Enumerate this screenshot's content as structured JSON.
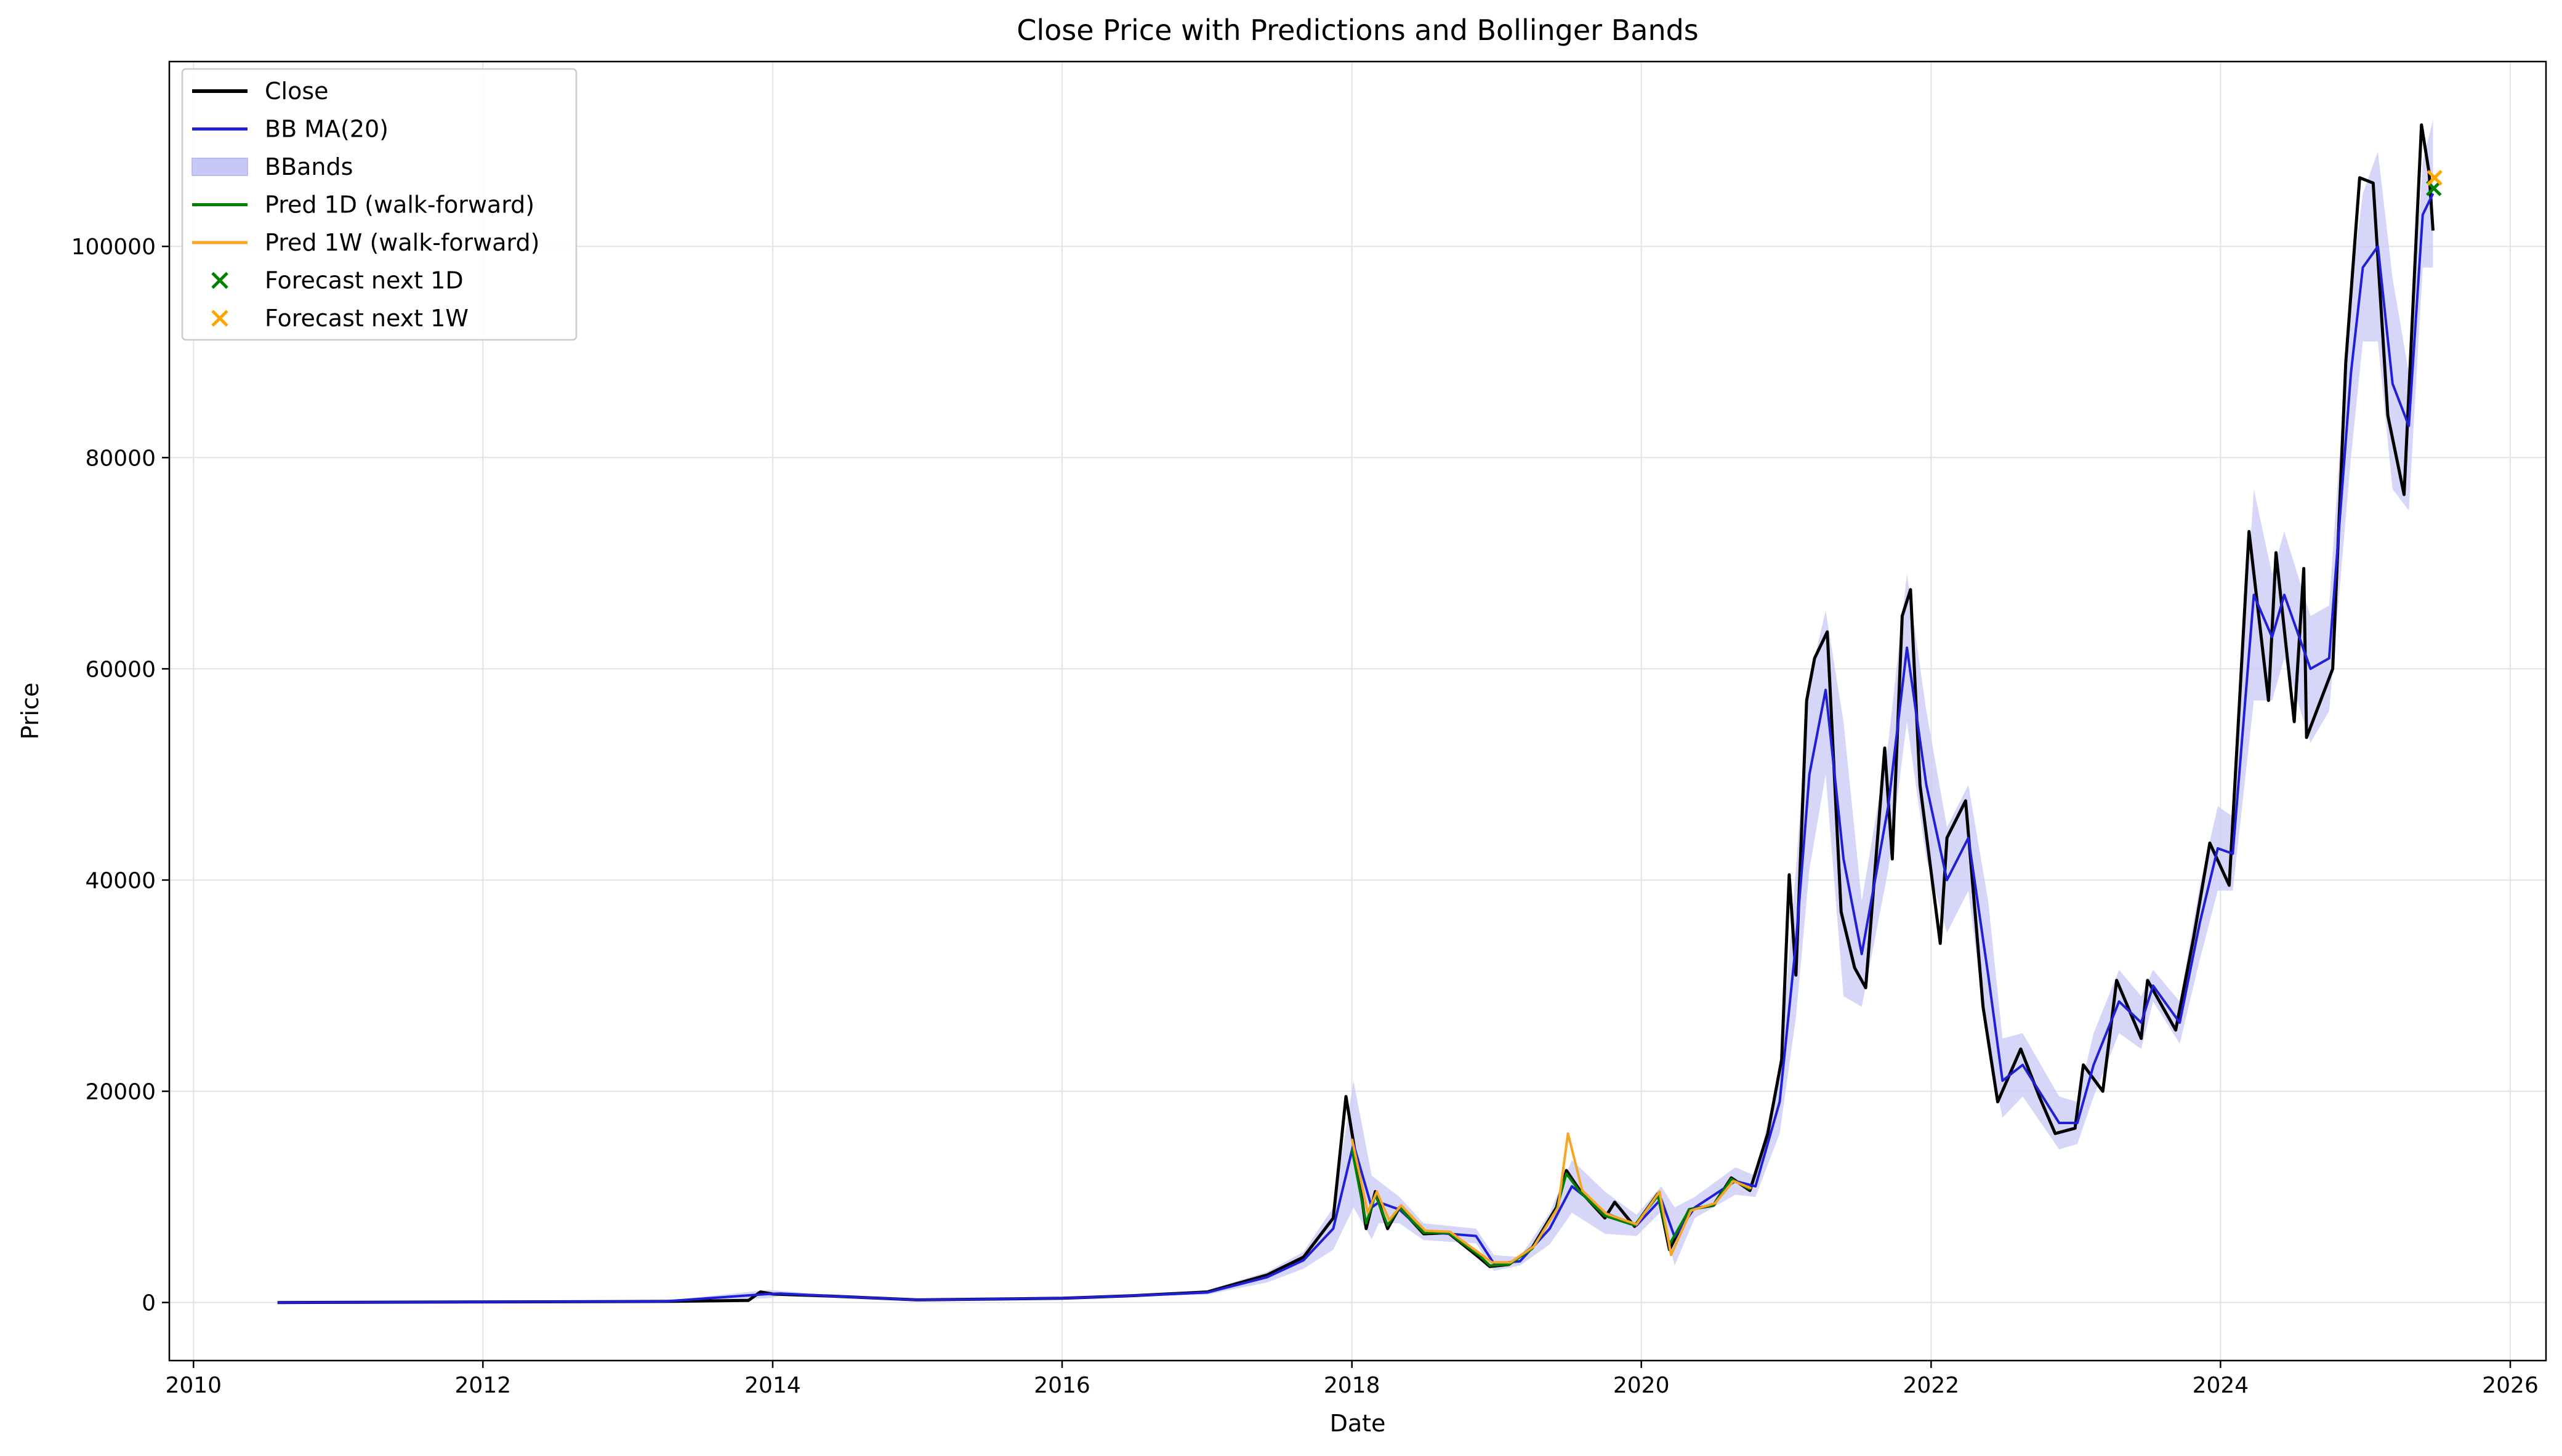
{
  "chart_data": {
    "type": "line",
    "title": "Close Price with Predictions and Bollinger Bands",
    "xlabel": "Date",
    "ylabel": "Price",
    "xlim": [
      "2009-11-01",
      "2026-04-01"
    ],
    "ylim": [
      -5500,
      117500
    ],
    "grid": true,
    "legend_position": "top-left",
    "x_ticks": [
      "2010",
      "2012",
      "2014",
      "2016",
      "2018",
      "2020",
      "2022",
      "2024",
      "2026"
    ],
    "y_ticks": [
      "0",
      "20000",
      "40000",
      "60000",
      "80000",
      "100000"
    ],
    "legend": [
      {
        "label": "Close",
        "kind": "line",
        "color": "#000000"
      },
      {
        "label": "BB MA(20)",
        "kind": "line",
        "color": "#1f1fd6"
      },
      {
        "label": "BBands",
        "kind": "band",
        "color": "#c8c8f7"
      },
      {
        "label": "Pred 1D (walk-forward)",
        "kind": "line",
        "color": "#008000"
      },
      {
        "label": "Pred 1W (walk-forward)",
        "kind": "line",
        "color": "#f5a623"
      },
      {
        "label": "Forecast next 1D",
        "kind": "marker",
        "color": "#008000"
      },
      {
        "label": "Forecast next 1W",
        "kind": "marker",
        "color": "#ffa500"
      }
    ],
    "series": [
      {
        "name": "Close",
        "color": "#000000",
        "points": [
          [
            "2010-08-01",
            0
          ],
          [
            "2013-04-01",
            100
          ],
          [
            "2013-11-01",
            200
          ],
          [
            "2013-12-01",
            1000
          ],
          [
            "2014-01-01",
            800
          ],
          [
            "2014-06-01",
            600
          ],
          [
            "2015-01-01",
            250
          ],
          [
            "2016-01-01",
            400
          ],
          [
            "2016-07-01",
            650
          ],
          [
            "2017-01-01",
            1000
          ],
          [
            "2017-06-01",
            2600
          ],
          [
            "2017-09-01",
            4300
          ],
          [
            "2017-11-15",
            8000
          ],
          [
            "2017-12-17",
            19500
          ],
          [
            "2018-01-10",
            14000
          ],
          [
            "2018-02-06",
            7000
          ],
          [
            "2018-03-01",
            10500
          ],
          [
            "2018-04-01",
            7000
          ],
          [
            "2018-05-01",
            9000
          ],
          [
            "2018-07-01",
            6500
          ],
          [
            "2018-09-01",
            6600
          ],
          [
            "2018-11-20",
            4200
          ],
          [
            "2018-12-15",
            3400
          ],
          [
            "2019-02-01",
            3600
          ],
          [
            "2019-04-01",
            5200
          ],
          [
            "2019-06-01",
            9000
          ],
          [
            "2019-06-26",
            12500
          ],
          [
            "2019-08-01",
            10500
          ],
          [
            "2019-10-01",
            8000
          ],
          [
            "2019-10-26",
            9500
          ],
          [
            "2019-12-15",
            7200
          ],
          [
            "2020-02-12",
            10300
          ],
          [
            "2020-03-12",
            5000
          ],
          [
            "2020-05-01",
            8800
          ],
          [
            "2020-07-01",
            9200
          ],
          [
            "2020-08-15",
            11800
          ],
          [
            "2020-10-01",
            10600
          ],
          [
            "2020-11-15",
            16000
          ],
          [
            "2020-12-20",
            23000
          ],
          [
            "2021-01-08",
            40500
          ],
          [
            "2021-01-25",
            31000
          ],
          [
            "2021-02-21",
            57000
          ],
          [
            "2021-03-13",
            61000
          ],
          [
            "2021-04-14",
            63500
          ],
          [
            "2021-05-19",
            37000
          ],
          [
            "2021-06-22",
            31700
          ],
          [
            "2021-07-20",
            29800
          ],
          [
            "2021-09-06",
            52500
          ],
          [
            "2021-09-25",
            42000
          ],
          [
            "2021-10-20",
            65000
          ],
          [
            "2021-11-10",
            67500
          ],
          [
            "2021-12-04",
            49000
          ],
          [
            "2022-01-24",
            34000
          ],
          [
            "2022-02-10",
            44000
          ],
          [
            "2022-03-29",
            47500
          ],
          [
            "2022-05-12",
            28000
          ],
          [
            "2022-06-18",
            19000
          ],
          [
            "2022-08-15",
            24000
          ],
          [
            "2022-10-01",
            19500
          ],
          [
            "2022-11-10",
            16000
          ],
          [
            "2022-12-30",
            16500
          ],
          [
            "2023-01-20",
            22500
          ],
          [
            "2023-03-10",
            20000
          ],
          [
            "2023-04-14",
            30500
          ],
          [
            "2023-06-15",
            25000
          ],
          [
            "2023-07-01",
            30500
          ],
          [
            "2023-09-10",
            25800
          ],
          [
            "2023-10-25",
            34500
          ],
          [
            "2023-12-05",
            43500
          ],
          [
            "2024-01-23",
            39500
          ],
          [
            "2024-03-13",
            73000
          ],
          [
            "2024-05-01",
            57000
          ],
          [
            "2024-05-20",
            71000
          ],
          [
            "2024-07-05",
            55000
          ],
          [
            "2024-07-29",
            69500
          ],
          [
            "2024-08-05",
            53500
          ],
          [
            "2024-10-10",
            60000
          ],
          [
            "2024-11-12",
            89000
          ],
          [
            "2024-12-17",
            106500
          ],
          [
            "2025-01-20",
            106000
          ],
          [
            "2025-02-26",
            84000
          ],
          [
            "2025-04-08",
            76500
          ],
          [
            "2025-05-22",
            111500
          ],
          [
            "2025-06-10",
            107000
          ],
          [
            "2025-06-20",
            101500
          ]
        ]
      },
      {
        "name": "BB MA(20)",
        "color": "#1f1fd6",
        "points": [
          [
            "2010-08-01",
            0
          ],
          [
            "2013-04-01",
            100
          ],
          [
            "2013-12-20",
            800
          ],
          [
            "2014-01-20",
            850
          ],
          [
            "2014-06-01",
            600
          ],
          [
            "2015-01-01",
            250
          ],
          [
            "2016-01-01",
            400
          ],
          [
            "2016-07-01",
            650
          ],
          [
            "2017-01-01",
            950
          ],
          [
            "2017-06-01",
            2400
          ],
          [
            "2017-09-01",
            4000
          ],
          [
            "2017-11-15",
            7000
          ],
          [
            "2018-01-05",
            15000
          ],
          [
            "2018-02-20",
            9000
          ],
          [
            "2018-03-10",
            9500
          ],
          [
            "2018-05-01",
            8800
          ],
          [
            "2018-07-01",
            6700
          ],
          [
            "2018-11-10",
            6300
          ],
          [
            "2018-12-25",
            3700
          ],
          [
            "2019-03-01",
            3900
          ],
          [
            "2019-05-15",
            7000
          ],
          [
            "2019-07-10",
            11000
          ],
          [
            "2019-10-01",
            8500
          ],
          [
            "2019-12-20",
            7300
          ],
          [
            "2020-02-20",
            9800
          ],
          [
            "2020-03-25",
            6200
          ],
          [
            "2020-05-15",
            9000
          ],
          [
            "2020-08-25",
            11500
          ],
          [
            "2020-10-15",
            11000
          ],
          [
            "2020-12-15",
            19000
          ],
          [
            "2021-01-25",
            34000
          ],
          [
            "2021-02-28",
            50000
          ],
          [
            "2021-04-10",
            58000
          ],
          [
            "2021-05-25",
            42000
          ],
          [
            "2021-07-10",
            33000
          ],
          [
            "2021-09-15",
            47000
          ],
          [
            "2021-11-01",
            62000
          ],
          [
            "2021-12-20",
            49000
          ],
          [
            "2022-02-10",
            40000
          ],
          [
            "2022-04-05",
            44000
          ],
          [
            "2022-05-25",
            31000
          ],
          [
            "2022-06-30",
            21000
          ],
          [
            "2022-08-20",
            22500
          ],
          [
            "2022-11-20",
            17000
          ],
          [
            "2023-01-05",
            17000
          ],
          [
            "2023-02-15",
            22500
          ],
          [
            "2023-04-20",
            28500
          ],
          [
            "2023-06-15",
            26500
          ],
          [
            "2023-07-15",
            30000
          ],
          [
            "2023-09-20",
            26500
          ],
          [
            "2023-11-10",
            36000
          ],
          [
            "2023-12-25",
            43000
          ],
          [
            "2024-02-01",
            42500
          ],
          [
            "2024-03-25",
            67000
          ],
          [
            "2024-05-10",
            63000
          ],
          [
            "2024-06-10",
            67000
          ],
          [
            "2024-08-15",
            60000
          ],
          [
            "2024-10-01",
            61000
          ],
          [
            "2024-11-25",
            88000
          ],
          [
            "2024-12-25",
            98000
          ],
          [
            "2025-02-01",
            100000
          ],
          [
            "2025-03-10",
            87000
          ],
          [
            "2025-04-20",
            83000
          ],
          [
            "2025-05-25",
            103000
          ],
          [
            "2025-06-20",
            105000
          ]
        ]
      },
      {
        "name": "Pred 1D (walk-forward)",
        "color": "#008000",
        "points": [
          [
            "2018-01-01",
            14500
          ],
          [
            "2018-02-06",
            7500
          ],
          [
            "2018-03-01",
            10200
          ],
          [
            "2018-04-01",
            7300
          ],
          [
            "2018-05-01",
            9000
          ],
          [
            "2018-07-01",
            6600
          ],
          [
            "2018-09-01",
            6600
          ],
          [
            "2018-11-20",
            4400
          ],
          [
            "2018-12-15",
            3500
          ],
          [
            "2019-02-01",
            3600
          ],
          [
            "2019-04-01",
            5100
          ],
          [
            "2019-06-01",
            8800
          ],
          [
            "2019-06-26",
            12200
          ],
          [
            "2019-08-01",
            10400
          ],
          [
            "2019-10-01",
            8200
          ],
          [
            "2019-12-15",
            7300
          ],
          [
            "2020-02-12",
            10100
          ],
          [
            "2020-03-12",
            5500
          ],
          [
            "2020-05-01",
            8800
          ],
          [
            "2020-07-01",
            9200
          ],
          [
            "2020-08-15",
            11700
          ],
          [
            "2020-10-01",
            10700
          ]
        ]
      },
      {
        "name": "Pred 1W (walk-forward)",
        "color": "#f5a623",
        "points": [
          [
            "2018-01-01",
            15500
          ],
          [
            "2018-02-10",
            8500
          ],
          [
            "2018-03-05",
            10500
          ],
          [
            "2018-04-05",
            7800
          ],
          [
            "2018-05-05",
            9200
          ],
          [
            "2018-07-05",
            6800
          ],
          [
            "2018-09-05",
            6700
          ],
          [
            "2018-11-25",
            4500
          ],
          [
            "2018-12-20",
            3800
          ],
          [
            "2019-02-05",
            3800
          ],
          [
            "2019-04-05",
            5300
          ],
          [
            "2019-06-05",
            9000
          ],
          [
            "2019-06-30",
            16000
          ],
          [
            "2019-08-05",
            10600
          ],
          [
            "2019-10-05",
            8400
          ],
          [
            "2019-12-20",
            7400
          ],
          [
            "2020-02-16",
            10500
          ],
          [
            "2020-03-16",
            4500
          ],
          [
            "2020-05-05",
            8700
          ],
          [
            "2020-07-05",
            9400
          ],
          [
            "2020-08-20",
            11500
          ],
          [
            "2020-10-05",
            10800
          ]
        ]
      }
    ],
    "bands": {
      "name": "BBands",
      "color": "#c8c8f7",
      "x": [
        "2010-08-01",
        "2013-04-01",
        "2013-12-20",
        "2014-01-20",
        "2014-06-01",
        "2015-01-01",
        "2016-01-01",
        "2016-07-01",
        "2017-01-01",
        "2017-06-01",
        "2017-09-01",
        "2017-11-15",
        "2018-01-05",
        "2018-02-20",
        "2018-03-10",
        "2018-05-01",
        "2018-07-01",
        "2018-11-10",
        "2018-12-25",
        "2019-03-01",
        "2019-05-15",
        "2019-07-10",
        "2019-10-01",
        "2019-12-20",
        "2020-02-20",
        "2020-03-25",
        "2020-05-15",
        "2020-08-25",
        "2020-10-15",
        "2020-12-15",
        "2021-01-25",
        "2021-02-28",
        "2021-04-10",
        "2021-05-25",
        "2021-07-10",
        "2021-09-15",
        "2021-11-01",
        "2021-12-20",
        "2022-02-10",
        "2022-04-05",
        "2022-05-25",
        "2022-06-30",
        "2022-08-20",
        "2022-11-20",
        "2023-01-05",
        "2023-02-15",
        "2023-04-20",
        "2023-06-15",
        "2023-07-15",
        "2023-09-20",
        "2023-11-10",
        "2023-12-25",
        "2024-02-01",
        "2024-03-25",
        "2024-05-10",
        "2024-06-10",
        "2024-08-15",
        "2024-10-01",
        "2024-11-25",
        "2024-12-25",
        "2025-02-01",
        "2025-03-10",
        "2025-04-20",
        "2025-05-25",
        "2025-06-20"
      ],
      "upper": [
        0,
        150,
        1200,
        1100,
        700,
        300,
        450,
        750,
        1150,
        2900,
        4800,
        9000,
        21000,
        12000,
        11500,
        10000,
        7500,
        7000,
        4500,
        4300,
        8500,
        13500,
        10500,
        8300,
        11000,
        9000,
        10000,
        12800,
        12000,
        22000,
        41000,
        59000,
        65500,
        55000,
        38000,
        53000,
        69000,
        56000,
        45000,
        49000,
        38000,
        25000,
        25500,
        19500,
        19000,
        25500,
        31500,
        29000,
        31500,
        28500,
        39500,
        47000,
        46000,
        77000,
        69000,
        73000,
        65000,
        66000,
        96000,
        105000,
        109000,
        97000,
        88000,
        108000,
        112000
      ],
      "lower": [
        0,
        60,
        400,
        600,
        500,
        200,
        350,
        550,
        750,
        1900,
        3200,
        5000,
        9000,
        6000,
        7500,
        7500,
        5900,
        5600,
        3000,
        3500,
        5500,
        8500,
        6500,
        6300,
        8600,
        3500,
        8000,
        10200,
        10000,
        16000,
        27000,
        41000,
        50000,
        29000,
        28000,
        41000,
        55000,
        42000,
        35000,
        39000,
        24000,
        17500,
        19500,
        14500,
        15000,
        19500,
        25500,
        24000,
        28500,
        24500,
        32500,
        39000,
        39000,
        57000,
        57000,
        61000,
        53000,
        56000,
        80000,
        91000,
        91000,
        77000,
        75000,
        98000,
        98000
      ]
    },
    "markers": [
      {
        "name": "Forecast next 1D",
        "x": "2025-06-22",
        "y": 105500,
        "color": "#008000"
      },
      {
        "name": "Forecast next 1W",
        "x": "2025-06-24",
        "y": 106500,
        "color": "#ffa500"
      }
    ]
  }
}
